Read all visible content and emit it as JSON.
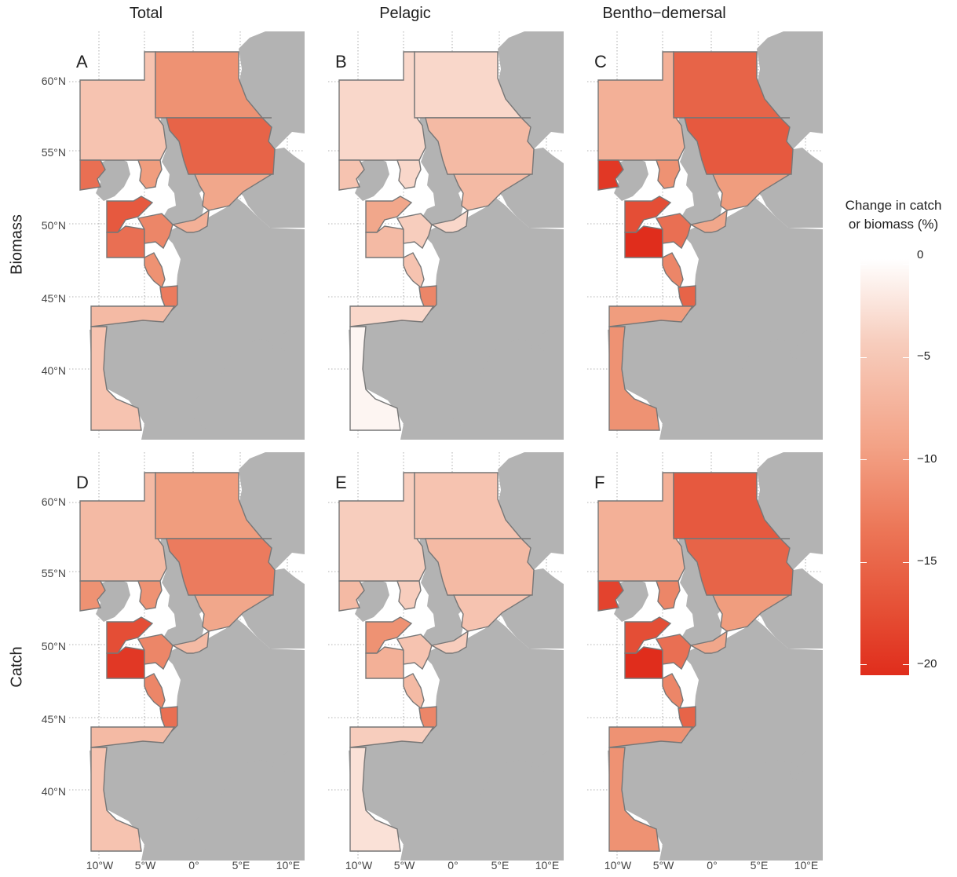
{
  "columns": [
    "Total",
    "Pelagic",
    "Bentho−demersal"
  ],
  "rows": [
    "Biomass",
    "Catch"
  ],
  "panels": [
    "A",
    "B",
    "C",
    "D",
    "E",
    "F"
  ],
  "lat_labels": [
    "60°N",
    "55°N",
    "50°N",
    "45°N",
    "40°N"
  ],
  "lon_labels": [
    "10°W",
    "5°W",
    "0°",
    "5°E",
    "10°E"
  ],
  "legend": {
    "title_line1": "Change in catch",
    "title_line2": "or biomass (%)",
    "ticks": [
      "0",
      "−5",
      "−10",
      "−15",
      "−20"
    ],
    "color_min": "#e02d1c",
    "color_max": "#ffffff"
  },
  "colors": {
    "land": "#b3b3b3",
    "border": "#777777",
    "grid": "#999999"
  },
  "region_values": {
    "A": {
      "west_scot": -6,
      "ireland_w": -14,
      "irish_sea": -10,
      "north_n": -11,
      "north_c": -15,
      "north_s": -9,
      "celtic": -16,
      "celtic_s": -14,
      "channel_w": -12,
      "channel_e": -8,
      "biscay_n": -11,
      "biscay_s": -13,
      "cantab": -7,
      "portugal": -6
    },
    "B": {
      "west_scot": -4,
      "ireland_w": -6,
      "irish_sea": -4,
      "north_n": -4,
      "north_c": -7,
      "north_s": -7,
      "celtic": -9,
      "celtic_s": -7,
      "channel_w": -5,
      "channel_e": -4,
      "biscay_n": -6,
      "biscay_s": -12,
      "cantab": -4,
      "portugal": -1
    },
    "C": {
      "west_scot": -8,
      "ireland_w": -19,
      "irish_sea": -11,
      "north_n": -15,
      "north_c": -16,
      "north_s": -10,
      "celtic": -17,
      "celtic_s": -20,
      "channel_w": -14,
      "channel_e": -9,
      "biscay_n": -12,
      "biscay_s": -15,
      "cantab": -10,
      "portugal": -11
    },
    "D": {
      "west_scot": -7,
      "ireland_w": -11,
      "irish_sea": -11,
      "north_n": -10,
      "north_c": -13,
      "north_s": -9,
      "celtic": -17,
      "celtic_s": -19,
      "channel_w": -12,
      "channel_e": -7,
      "biscay_n": -12,
      "biscay_s": -14,
      "cantab": -7,
      "portugal": -6
    },
    "E": {
      "west_scot": -5,
      "ireland_w": -7,
      "irish_sea": -5,
      "north_n": -6,
      "north_c": -7,
      "north_s": -6,
      "celtic": -11,
      "celtic_s": -8,
      "channel_w": -6,
      "channel_e": -5,
      "biscay_n": -7,
      "biscay_s": -12,
      "cantab": -5,
      "portugal": -3
    },
    "F": {
      "west_scot": -8,
      "ireland_w": -18,
      "irish_sea": -12,
      "north_n": -16,
      "north_c": -15,
      "north_s": -10,
      "celtic": -17,
      "celtic_s": -20,
      "channel_w": -14,
      "channel_e": -9,
      "biscay_n": -12,
      "biscay_s": -15,
      "cantab": -11,
      "portugal": -11
    }
  }
}
